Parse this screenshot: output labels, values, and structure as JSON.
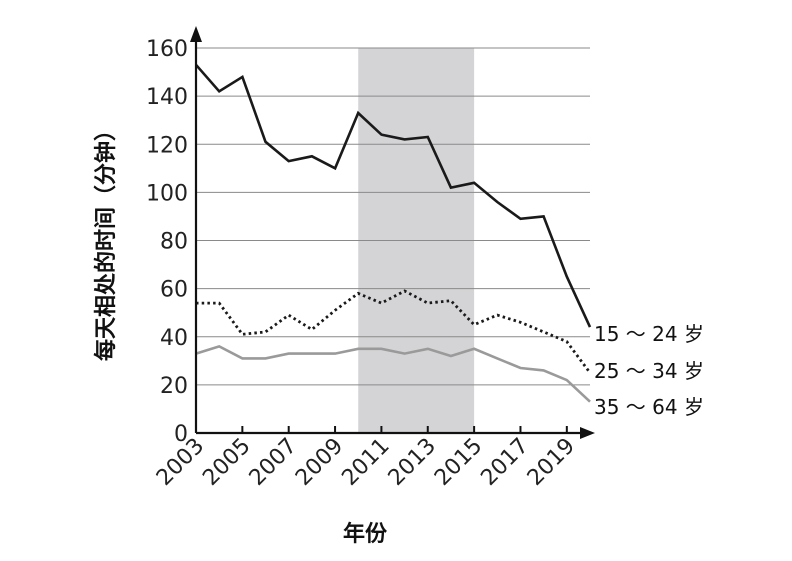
{
  "chart_data": {
    "type": "line",
    "xlabel": "年份",
    "ylabel": "每天相处的时间（分钟）",
    "xlim": [
      2003,
      2020
    ],
    "ylim": [
      0,
      160
    ],
    "y_ticks": [
      0,
      20,
      40,
      60,
      80,
      100,
      120,
      140,
      160
    ],
    "x_ticks": [
      2003,
      2005,
      2007,
      2009,
      2011,
      2013,
      2015,
      2017,
      2019
    ],
    "x_tick_labels": [
      "2003",
      "2005",
      "2007",
      "2009",
      "2011",
      "2013",
      "2015",
      "2017",
      "2019"
    ],
    "grid": true,
    "shaded_region": {
      "x_start": 2010,
      "x_end": 2015,
      "color": "#d4d4d6"
    },
    "x": [
      2003,
      2004,
      2005,
      2006,
      2007,
      2008,
      2009,
      2010,
      2011,
      2012,
      2013,
      2014,
      2015,
      2016,
      2017,
      2018,
      2019,
      2020
    ],
    "series": [
      {
        "name": "15 ～ 24 岁",
        "style": "solid",
        "color": "#1a1a1a",
        "values": [
          153,
          142,
          148,
          121,
          113,
          115,
          110,
          133,
          124,
          122,
          123,
          102,
          104,
          96,
          89,
          90,
          65,
          44
        ]
      },
      {
        "name": "25 ～ 34 岁",
        "style": "dotted",
        "color": "#1a1a1a",
        "values": [
          54,
          54,
          41,
          42,
          49,
          43,
          51,
          58,
          54,
          59,
          54,
          55,
          45,
          49,
          46,
          42,
          38,
          25
        ]
      },
      {
        "name": "35 ～ 64 岁",
        "style": "solid",
        "color": "#9a9a9a",
        "values": [
          33,
          36,
          31,
          31,
          33,
          33,
          33,
          35,
          35,
          33,
          35,
          32,
          35,
          31,
          27,
          26,
          22,
          13
        ]
      }
    ]
  }
}
